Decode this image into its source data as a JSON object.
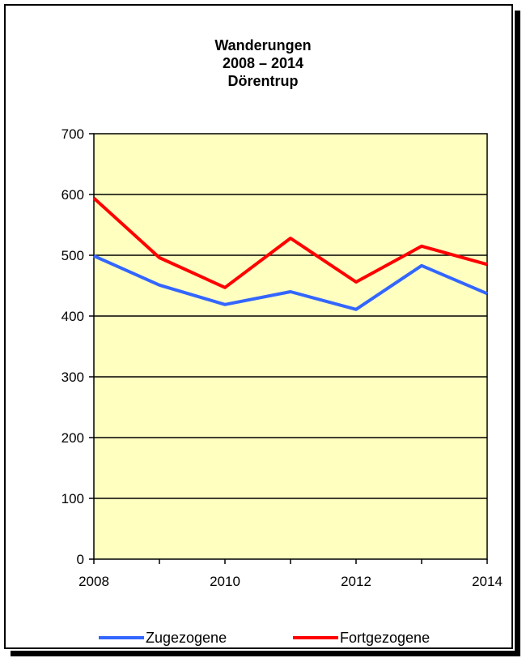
{
  "chart_data": {
    "type": "line",
    "title_lines": [
      "Wanderungen",
      "2008 – 2014",
      "Dörentrup"
    ],
    "x": [
      2008,
      2009,
      2010,
      2011,
      2012,
      2013,
      2014
    ],
    "x_tick_labels": [
      "2008",
      "2010",
      "2012",
      "2014"
    ],
    "y_tick_labels": [
      "0",
      "100",
      "200",
      "300",
      "400",
      "500",
      "600",
      "700"
    ],
    "ylim": [
      0,
      700
    ],
    "grid": true,
    "legend_position": "bottom",
    "plot_background": "#ffffc0",
    "series": [
      {
        "name": "Zugezogene",
        "color": "#3366ff",
        "values": [
          499,
          451,
          419,
          440,
          411,
          483,
          437
        ]
      },
      {
        "name": "Fortgezogene",
        "color": "#ff0000",
        "values": [
          594,
          496,
          447,
          528,
          456,
          515,
          485
        ]
      }
    ]
  }
}
